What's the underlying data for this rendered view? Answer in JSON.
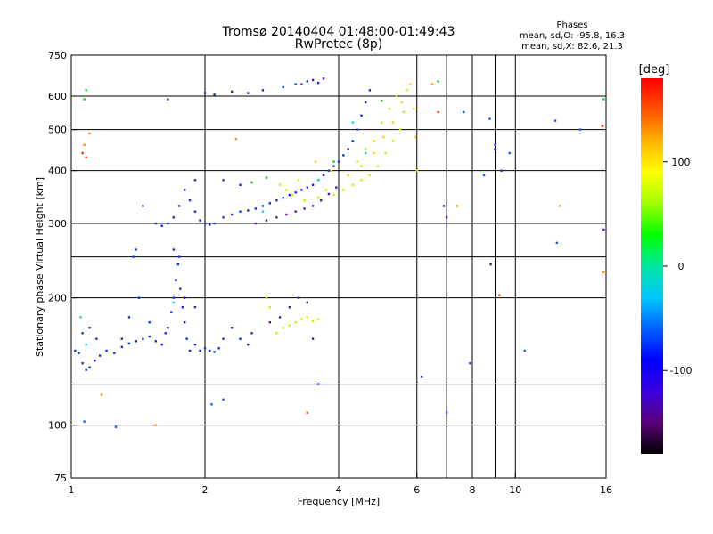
{
  "chart_data": {
    "type": "scatter",
    "title": "Tromsø 20140404 01:48:00-01:49:43",
    "subtitle": "RwPretec (8p)",
    "xlabel": "Frequency [MHz]",
    "ylabel": "Stationary phase Virtual Height [km]",
    "x_scale": "log",
    "y_scale": "log",
    "xlim": [
      1,
      16
    ],
    "ylim": [
      75,
      750
    ],
    "grid": true,
    "x_ticks": [
      {
        "value": 1,
        "label": "1"
      },
      {
        "value": 2,
        "label": "2"
      },
      {
        "value": 4,
        "label": "4"
      },
      {
        "value": 6,
        "label": "6"
      },
      {
        "value": 8,
        "label": "8"
      },
      {
        "value": 10,
        "label": "10"
      },
      {
        "value": 16,
        "label": "16"
      }
    ],
    "x_grid": [
      2,
      4,
      6,
      7,
      8,
      9,
      10
    ],
    "y_ticks": [
      {
        "value": 75,
        "label": "75"
      },
      {
        "value": 100,
        "label": "100"
      },
      {
        "value": 200,
        "label": "200"
      },
      {
        "value": 300,
        "label": "300"
      },
      {
        "value": 400,
        "label": "400"
      },
      {
        "value": 500,
        "label": "500"
      },
      {
        "value": 600,
        "label": "600"
      },
      {
        "value": 750,
        "label": "750"
      }
    ],
    "y_grid": [
      100,
      125,
      200,
      250,
      300,
      400,
      500,
      600
    ],
    "phase_info": {
      "heading": "Phases",
      "line1": "mean, sd,O: -95.8, 16.3",
      "line2": "mean, sd,X:  82.6, 21.3"
    },
    "colorbar": {
      "label": "[deg]",
      "range": [
        -180,
        180
      ],
      "ticks": [
        {
          "value": 100,
          "label": "100"
        },
        {
          "value": 0,
          "label": "0"
        },
        {
          "value": -100,
          "label": "-100"
        }
      ],
      "colors": [
        "#000000",
        "#5a007a",
        "#3a00e0",
        "#0000ff",
        "#0060ff",
        "#00c8ff",
        "#00e6a0",
        "#00ff00",
        "#a0ff00",
        "#ffff00",
        "#ffb400",
        "#ff5000",
        "#ff0000"
      ]
    },
    "series": [
      {
        "type": "cloud",
        "color": "#1030e0",
        "points": [
          [
            1.02,
            150
          ],
          [
            1.04,
            148
          ],
          [
            1.06,
            140
          ],
          [
            1.08,
            135
          ],
          [
            1.1,
            137
          ],
          [
            1.13,
            142
          ],
          [
            1.16,
            146
          ],
          [
            1.2,
            150
          ],
          [
            1.25,
            148
          ],
          [
            1.3,
            153
          ],
          [
            1.35,
            156
          ],
          [
            1.4,
            158
          ],
          [
            1.45,
            160
          ],
          [
            1.5,
            162
          ],
          [
            1.55,
            158
          ],
          [
            1.6,
            155
          ],
          [
            1.63,
            165
          ],
          [
            1.65,
            170
          ],
          [
            1.68,
            185
          ],
          [
            1.7,
            200
          ],
          [
            1.72,
            220
          ],
          [
            1.74,
            240
          ],
          [
            1.76,
            210
          ],
          [
            1.78,
            190
          ],
          [
            1.8,
            175
          ],
          [
            1.82,
            160
          ],
          [
            1.85,
            150
          ],
          [
            1.9,
            155
          ],
          [
            1.95,
            150
          ],
          [
            2.0,
            152
          ],
          [
            2.05,
            150
          ],
          [
            2.1,
            149
          ],
          [
            2.15,
            152
          ],
          [
            2.2,
            160
          ],
          [
            2.3,
            170
          ],
          [
            2.4,
            160
          ],
          [
            2.5,
            155
          ],
          [
            2.55,
            165
          ],
          [
            1.6,
            296
          ],
          [
            1.65,
            300
          ],
          [
            1.7,
            310
          ],
          [
            1.75,
            330
          ],
          [
            1.8,
            360
          ],
          [
            1.85,
            340
          ],
          [
            1.9,
            320
          ],
          [
            1.95,
            305
          ],
          [
            2.0,
            300
          ],
          [
            2.05,
            298
          ],
          [
            2.1,
            300
          ],
          [
            2.2,
            310
          ],
          [
            2.3,
            315
          ],
          [
            2.4,
            320
          ],
          [
            2.5,
            322
          ],
          [
            2.6,
            325
          ],
          [
            2.7,
            330
          ],
          [
            2.8,
            335
          ],
          [
            2.9,
            340
          ],
          [
            3.0,
            345
          ],
          [
            3.1,
            350
          ],
          [
            3.2,
            355
          ],
          [
            3.3,
            360
          ],
          [
            3.4,
            365
          ],
          [
            3.5,
            370
          ],
          [
            3.6,
            380
          ],
          [
            3.7,
            390
          ],
          [
            3.8,
            400
          ],
          [
            3.9,
            410
          ],
          [
            4.0,
            420
          ],
          [
            4.1,
            435
          ],
          [
            4.2,
            450
          ],
          [
            4.3,
            470
          ],
          [
            4.4,
            500
          ],
          [
            4.5,
            540
          ],
          [
            4.6,
            580
          ],
          [
            4.7,
            620
          ],
          [
            1.65,
            590
          ],
          [
            2.0,
            610
          ],
          [
            2.1,
            605
          ],
          [
            2.3,
            615
          ],
          [
            2.5,
            610
          ],
          [
            2.7,
            620
          ],
          [
            3.0,
            630
          ],
          [
            3.2,
            640
          ],
          [
            3.4,
            650
          ],
          [
            3.6,
            645
          ],
          [
            1.7,
            260
          ],
          [
            1.75,
            250
          ],
          [
            1.55,
            300
          ],
          [
            1.45,
            330
          ],
          [
            1.9,
            380
          ],
          [
            2.2,
            380
          ],
          [
            2.4,
            370
          ],
          [
            1.38,
            250
          ],
          [
            1.42,
            200
          ],
          [
            1.35,
            180
          ],
          [
            1.06,
            165
          ],
          [
            1.1,
            170
          ],
          [
            1.14,
            160
          ],
          [
            1.3,
            160
          ],
          [
            1.5,
            175
          ]
        ]
      },
      {
        "type": "cloud",
        "color": "#5a10b0",
        "points": [
          [
            2.6,
            300
          ],
          [
            2.75,
            305
          ],
          [
            2.9,
            310
          ],
          [
            3.05,
            315
          ],
          [
            3.2,
            320
          ],
          [
            3.35,
            325
          ],
          [
            3.5,
            330
          ],
          [
            3.65,
            340
          ],
          [
            3.8,
            352
          ],
          [
            3.95,
            365
          ],
          [
            2.8,
            175
          ],
          [
            2.95,
            180
          ],
          [
            3.1,
            190
          ],
          [
            3.25,
            200
          ],
          [
            3.4,
            195
          ],
          [
            3.5,
            160
          ],
          [
            1.8,
            200
          ],
          [
            1.9,
            190
          ],
          [
            3.3,
            640
          ],
          [
            3.5,
            655
          ],
          [
            3.7,
            660
          ],
          [
            6.9,
            330
          ],
          [
            7.0,
            310
          ],
          [
            8.8,
            240
          ],
          [
            9.0,
            450
          ],
          [
            9.3,
            400
          ],
          [
            15.8,
            290
          ]
        ]
      },
      {
        "type": "cloud",
        "color": "#c8f000",
        "points": [
          [
            2.95,
            370
          ],
          [
            3.05,
            360
          ],
          [
            3.15,
            350
          ],
          [
            3.25,
            380
          ],
          [
            3.35,
            340
          ],
          [
            3.6,
            345
          ],
          [
            3.75,
            360
          ],
          [
            3.9,
            350
          ],
          [
            4.1,
            360
          ],
          [
            4.3,
            370
          ],
          [
            4.5,
            380
          ],
          [
            4.7,
            390
          ],
          [
            4.9,
            410
          ],
          [
            5.1,
            440
          ],
          [
            5.3,
            470
          ],
          [
            5.5,
            500
          ],
          [
            5.6,
            550
          ],
          [
            5.7,
            620
          ],
          [
            4.4,
            420
          ],
          [
            4.6,
            450
          ],
          [
            4.8,
            470
          ],
          [
            5.0,
            520
          ],
          [
            5.2,
            560
          ],
          [
            5.4,
            600
          ],
          [
            2.8,
            190
          ],
          [
            2.9,
            165
          ],
          [
            3.0,
            170
          ],
          [
            3.1,
            172
          ],
          [
            3.2,
            175
          ],
          [
            3.3,
            178
          ],
          [
            3.4,
            180
          ],
          [
            3.5,
            176
          ],
          [
            3.6,
            178
          ],
          [
            2.75,
            200
          ]
        ]
      },
      {
        "type": "cloud",
        "color": "#ffd000",
        "points": [
          [
            4.2,
            390
          ],
          [
            4.5,
            410
          ],
          [
            4.8,
            440
          ],
          [
            5.05,
            480
          ],
          [
            5.3,
            520
          ],
          [
            5.55,
            580
          ],
          [
            5.8,
            640
          ],
          [
            5.9,
            560
          ],
          [
            5.95,
            480
          ],
          [
            6.0,
            400
          ],
          [
            3.55,
            420
          ],
          [
            3.85,
            400
          ]
        ]
      },
      {
        "type": "cloud",
        "color": "#00d8ff",
        "points": [
          [
            1.05,
            180
          ],
          [
            1.08,
            155
          ],
          [
            1.7,
            195
          ],
          [
            2.7,
            320
          ],
          [
            3.6,
            380
          ],
          [
            4.3,
            520
          ],
          [
            4.6,
            440
          ]
        ]
      },
      {
        "type": "cloud",
        "color": "#10c820",
        "points": [
          [
            1.08,
            620
          ],
          [
            1.07,
            590
          ],
          [
            2.55,
            375
          ],
          [
            2.75,
            385
          ],
          [
            5.0,
            585
          ],
          [
            15.8,
            590
          ],
          [
            6.7,
            650
          ],
          [
            3.9,
            420
          ]
        ]
      },
      {
        "type": "cloud",
        "color": "#ff3000",
        "points": [
          [
            1.08,
            430
          ],
          [
            3.4,
            107
          ],
          [
            6.7,
            550
          ],
          [
            9.2,
            203
          ],
          [
            15.7,
            510
          ],
          [
            1.06,
            440
          ]
        ]
      },
      {
        "type": "cloud",
        "color": "#ff8c00",
        "points": [
          [
            1.1,
            490
          ],
          [
            1.07,
            460
          ],
          [
            1.17,
            118
          ],
          [
            1.55,
            100
          ],
          [
            2.35,
            475
          ],
          [
            6.5,
            640
          ],
          [
            7.4,
            330
          ],
          [
            12.6,
            330
          ],
          [
            15.8,
            230
          ]
        ]
      },
      {
        "type": "cloud",
        "color": "#2050ff",
        "points": [
          [
            1.07,
            102
          ],
          [
            1.26,
            99
          ],
          [
            2.07,
            112
          ],
          [
            2.2,
            115
          ],
          [
            6.15,
            130
          ],
          [
            7.0,
            107
          ],
          [
            7.65,
            550
          ],
          [
            8.75,
            530
          ],
          [
            9.7,
            440
          ],
          [
            10.5,
            150
          ],
          [
            12.3,
            525
          ],
          [
            14.0,
            500
          ],
          [
            12.4,
            270
          ],
          [
            7.9,
            140
          ],
          [
            8.5,
            390
          ],
          [
            9.0,
            460
          ],
          [
            1.4,
            260
          ],
          [
            3.6,
            125
          ]
        ]
      }
    ]
  }
}
